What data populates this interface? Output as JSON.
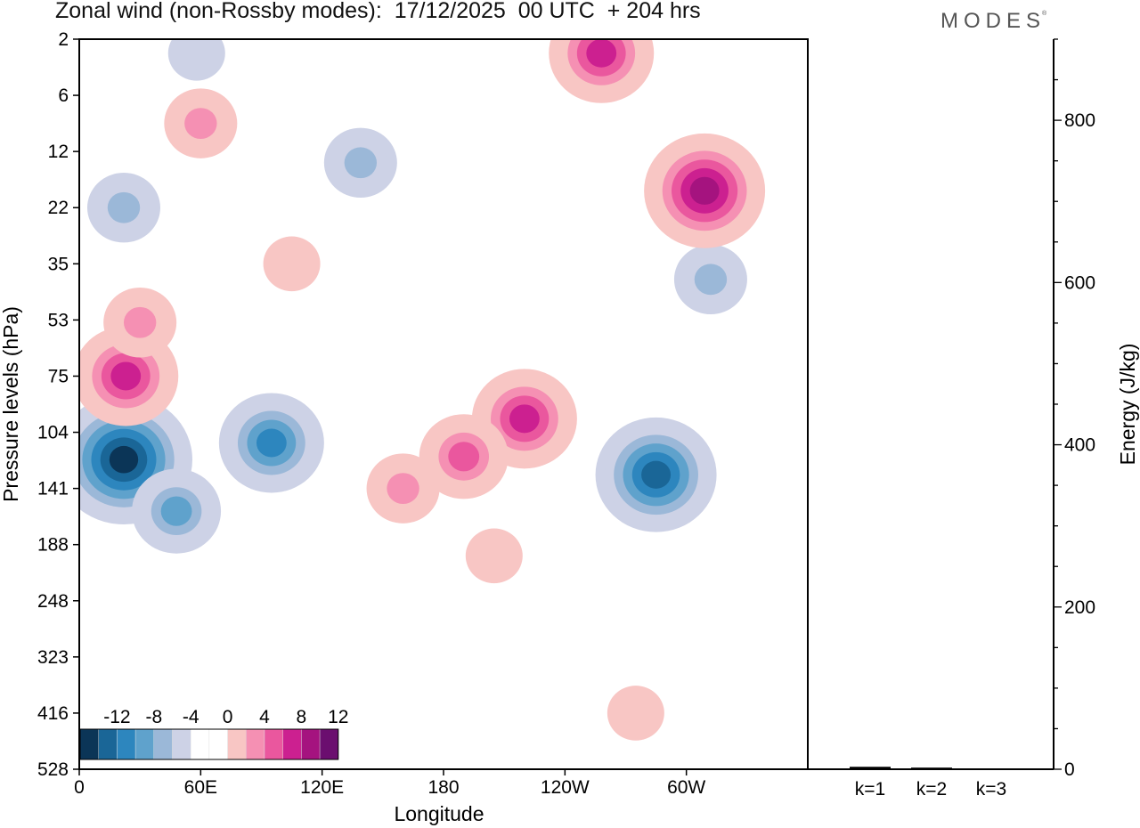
{
  "title": "Zonal wind (non-Rossby modes):  17/12/2025  00 UTC  + 204 hrs",
  "logo": "MODES",
  "logo_mark": "®",
  "chart_data": [
    {
      "type": "heatmap",
      "title": "Zonal wind (non-Rossby modes):  17/12/2025  00 UTC  + 204 hrs",
      "xlabel": "Longitude",
      "ylabel": "Pressure levels (hPa)",
      "x_ticks": [
        "0",
        "60E",
        "120E",
        "180",
        "120W",
        "60W"
      ],
      "x_tick_degrees": [
        0,
        60,
        120,
        180,
        240,
        300
      ],
      "xlim": [
        0,
        360
      ],
      "y_ticks": [
        "2",
        "6",
        "12",
        "22",
        "35",
        "53",
        "75",
        "104",
        "141",
        "188",
        "248",
        "323",
        "416",
        "528"
      ],
      "colorbar": {
        "labels": [
          "-12",
          "-8",
          "-4",
          "0",
          "4",
          "8",
          "12"
        ],
        "levels": [
          -14,
          -12,
          -10,
          -8,
          -6,
          -4,
          -2,
          2,
          4,
          6,
          8,
          10,
          12,
          14
        ],
        "colors": [
          "#0b3557",
          "#1a6697",
          "#2d86be",
          "#5fa2cc",
          "#9bb8d8",
          "#cdd2e6",
          "#ffffff",
          "#ffffff",
          "#f8c6c4",
          "#f590b3",
          "#ea579e",
          "#cc2090",
          "#a5137f",
          "#6b0e6f"
        ]
      },
      "anomalies": [
        {
          "lon": 22,
          "level": "122",
          "value": -14
        },
        {
          "lon": 48,
          "level": "160",
          "value": -8
        },
        {
          "lon": 95,
          "level": "111",
          "value": -10
        },
        {
          "lon": 285,
          "level": "132",
          "value": -12
        },
        {
          "lon": 312,
          "level": "40",
          "value": -6
        },
        {
          "lon": 139,
          "level": "14",
          "value": -6
        },
        {
          "lon": 22,
          "level": "22",
          "value": -6
        },
        {
          "lon": 58,
          "level": "3",
          "value": -4
        },
        {
          "lon": 258,
          "level": "3",
          "value": 10
        },
        {
          "lon": 309,
          "level": "19",
          "value": 12
        },
        {
          "lon": 23,
          "level": "75",
          "value": 10
        },
        {
          "lon": 30,
          "level": "54",
          "value": 6
        },
        {
          "lon": 60,
          "level": "9",
          "value": 6
        },
        {
          "lon": 220,
          "level": "97",
          "value": 10
        },
        {
          "lon": 160,
          "level": "141",
          "value": 6
        },
        {
          "lon": 190,
          "level": "120",
          "value": 8
        },
        {
          "lon": 205,
          "level": "200",
          "value": 4
        },
        {
          "lon": 275,
          "level": "416",
          "value": 4
        },
        {
          "lon": 105,
          "level": "35",
          "value": 4
        }
      ]
    },
    {
      "type": "bar",
      "categories": [
        "k=1",
        "k=2",
        "k=3"
      ],
      "values": [
        3,
        2,
        1
      ],
      "ylabel": "Energy (J/kg)",
      "y_ticks": [
        "0",
        "200",
        "400",
        "600",
        "800"
      ],
      "ylim": [
        0,
        900
      ]
    }
  ]
}
